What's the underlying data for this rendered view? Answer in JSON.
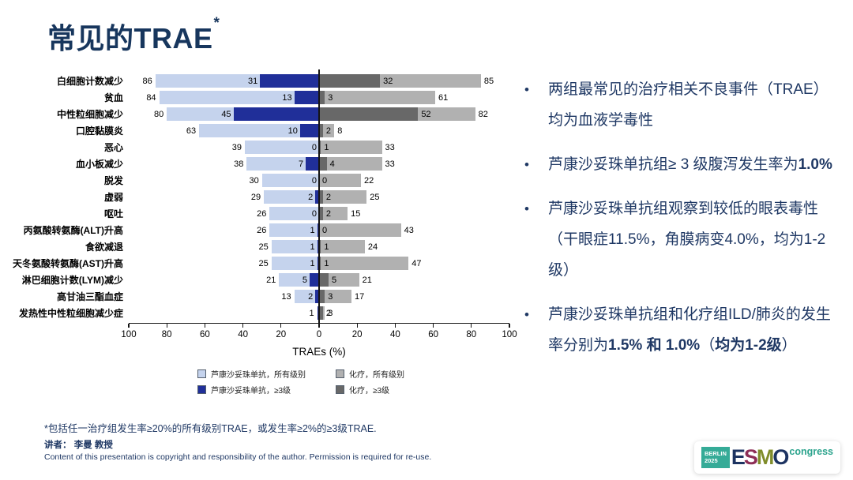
{
  "slide": {
    "title": "常见的TRAE",
    "title_asterisk": "*",
    "footnote": "*包括任一治疗组发生率≥20%的所有级别TRAE，或发生率≥2%的≥3级TRAE.",
    "speaker": "讲者： 李曼 教授",
    "copyright": "Content of this presentation is copyright and responsibility of the author. Permission is required for re-use."
  },
  "colors": {
    "navy_text": "#1f3864",
    "title_navy": "#17365d",
    "sac_all": "#c5d3ed",
    "sac_g3": "#202f99",
    "chemo_all": "#b1b1b1",
    "chemo_g3": "#686868",
    "axis": "#151515",
    "logo_teal": "#35ab97",
    "logo_congress": "#2aa38c"
  },
  "chart_data": {
    "type": "bar",
    "orientation": "horizontal-diverging",
    "title": "",
    "xlabel": "TRAEs (%)",
    "axis_ticks": [
      100,
      80,
      60,
      40,
      20,
      0,
      20,
      40,
      60,
      80,
      100
    ],
    "xlim": [
      -100,
      100
    ],
    "legend_position": "bottom",
    "legend": [
      {
        "label": "芦康沙妥珠单抗，所有级别",
        "color_key": "sac_all"
      },
      {
        "label": "化疗，所有级别",
        "color_key": "chemo_all"
      },
      {
        "label": "芦康沙妥珠单抗，≥3级",
        "color_key": "sac_g3"
      },
      {
        "label": "化疗，≥3级",
        "color_key": "chemo_g3"
      }
    ],
    "series_meaning": {
      "left": "芦康沙妥珠单抗 (light = 所有级别, dark = ≥3级)",
      "right": "化疗 (light = 所有级别, dark = ≥3级)"
    },
    "rows": [
      {
        "label": "白细胞计数减少",
        "sac_all": 86,
        "sac_g3": 31,
        "chemo_g3": 32,
        "chemo_all": 85
      },
      {
        "label": "贫血",
        "sac_all": 84,
        "sac_g3": 13,
        "chemo_g3": 3,
        "chemo_all": 61
      },
      {
        "label": "中性粒细胞减少",
        "sac_all": 80,
        "sac_g3": 45,
        "chemo_g3": 52,
        "chemo_all": 82
      },
      {
        "label": "口腔黏膜炎",
        "sac_all": 63,
        "sac_g3": 10,
        "chemo_g3": 2,
        "chemo_all": 8
      },
      {
        "label": "恶心",
        "sac_all": 39,
        "sac_g3": 0,
        "chemo_g3": 1,
        "chemo_all": 33
      },
      {
        "label": "血小板减少",
        "sac_all": 38,
        "sac_g3": 7,
        "chemo_g3": 4,
        "chemo_all": 33
      },
      {
        "label": "脱发",
        "sac_all": 30,
        "sac_g3": 0,
        "chemo_g3": 0,
        "chemo_all": 22
      },
      {
        "label": "虚弱",
        "sac_all": 29,
        "sac_g3": 2,
        "chemo_g3": 2,
        "chemo_all": 25
      },
      {
        "label": "呕吐",
        "sac_all": 26,
        "sac_g3": 0,
        "chemo_g3": 2,
        "chemo_all": 15
      },
      {
        "label": "丙氨酸转氨酶(ALT)升高",
        "sac_all": 26,
        "sac_g3": 1,
        "chemo_g3": 0,
        "chemo_all": 43
      },
      {
        "label": "食欲减退",
        "sac_all": 25,
        "sac_g3": 1,
        "chemo_g3": 1,
        "chemo_all": 24
      },
      {
        "label": "天冬氨酸转氨酶(AST)升高",
        "sac_all": 25,
        "sac_g3": 1,
        "chemo_g3": 1,
        "chemo_all": 47
      },
      {
        "label": "淋巴细胞计数(LYM)减少",
        "sac_all": 21,
        "sac_g3": 5,
        "chemo_g3": 5,
        "chemo_all": 21
      },
      {
        "label": "高甘油三酯血症",
        "sac_all": 13,
        "sac_g3": 2,
        "chemo_g3": 3,
        "chemo_all": 17
      },
      {
        "label": "发热性中性粒细胞减少症",
        "sac_all": 1,
        "sac_g3": 1,
        "chemo_g3": 2,
        "chemo_all": 3,
        "sac_g3_label": ""
      }
    ]
  },
  "bullets": [
    {
      "segments": [
        {
          "text": "两组最常见的治疗相关不良事件（TRAE）均为血液学毒性",
          "bold": false
        }
      ]
    },
    {
      "segments": [
        {
          "text": "芦康沙妥珠单抗组≥ 3 级腹泻发生率为",
          "bold": false
        },
        {
          "text": "1.0%",
          "bold": true
        }
      ]
    },
    {
      "segments": [
        {
          "text": "芦康沙妥珠单抗组观察到较低的眼表毒性（干眼症11.5%，角膜病变4.0%，均为1-2级）",
          "bold": false
        }
      ]
    },
    {
      "segments": [
        {
          "text": "芦康沙妥珠单抗组和化疗组ILD/肺炎的发生率分别为",
          "bold": false
        },
        {
          "text": "1.5% 和 1.0%",
          "bold": true
        },
        {
          "text": "（",
          "bold": false
        },
        {
          "text": "均为1-2级",
          "bold": true
        },
        {
          "text": "）",
          "bold": false
        }
      ]
    }
  ],
  "logo": {
    "badge_line1": "BERLIN",
    "badge_line2": "2025",
    "letters": [
      {
        "ch": "E",
        "color": "#1d3361"
      },
      {
        "ch": "S",
        "color": "#8d2e56"
      },
      {
        "ch": "M",
        "color": "#7f8c2a"
      },
      {
        "ch": "O",
        "color": "#1d3361"
      }
    ],
    "congress": "congress"
  }
}
